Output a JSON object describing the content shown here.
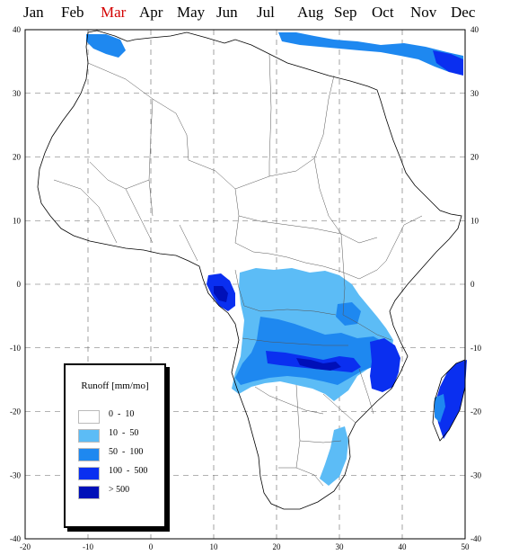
{
  "months": [
    {
      "label": "Jan",
      "active": false
    },
    {
      "label": "Feb",
      "active": false
    },
    {
      "label": "Mar",
      "active": true
    },
    {
      "label": "Apr",
      "active": false
    },
    {
      "label": "May",
      "active": false
    },
    {
      "label": "Jun",
      "active": false
    },
    {
      "label": "Jul",
      "active": false
    },
    {
      "label": "Aug",
      "active": false
    },
    {
      "label": "Sep",
      "active": false
    },
    {
      "label": "Oct",
      "active": false
    },
    {
      "label": "Nov",
      "active": false
    },
    {
      "label": "Dec",
      "active": false
    }
  ],
  "map": {
    "lon_range": [
      -20,
      50
    ],
    "lat_range": [
      -40,
      40
    ],
    "x_ticks": [
      "-20",
      "-10",
      "0",
      "10",
      "20",
      "30",
      "40",
      "50"
    ],
    "y_ticks": [
      "40",
      "30",
      "20",
      "10",
      "0",
      "-10",
      "-20",
      "-30",
      "-40"
    ],
    "grid": "dashed"
  },
  "legend": {
    "title": "Runoff [mm/mo]",
    "classes": [
      {
        "label": "0  -  10",
        "color": "#ffffff"
      },
      {
        "label": "10  -  50",
        "color": "#5cbcf6"
      },
      {
        "label": "50  -  100",
        "color": "#1e88f0"
      },
      {
        "label": "100  -  500",
        "color": "#0a2ff0"
      },
      {
        "label": "> 500",
        "color": "#0010b8"
      }
    ]
  }
}
